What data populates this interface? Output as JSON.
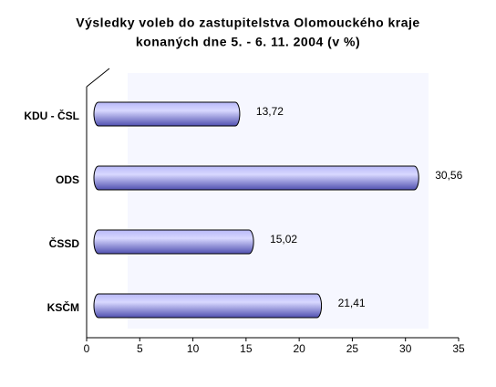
{
  "chart_data": {
    "type": "bar",
    "orientation": "horizontal",
    "title": [
      "Výsledky voleb do zastupitelstva Olomouckého kraje",
      "konaných dne 5. - 6. 11. 2004 (v %)"
    ],
    "categories": [
      "KDU - ČSL",
      "ODS",
      "ČSSD",
      "KSČM"
    ],
    "values": [
      13.72,
      30.56,
      15.02,
      21.41
    ],
    "value_labels": [
      "13,72",
      "30,56",
      "15,02",
      "21,41"
    ],
    "color": "#8080e0",
    "xlim": [
      0,
      35
    ],
    "xticks": [
      0,
      5,
      10,
      15,
      20,
      25,
      30,
      35
    ]
  }
}
